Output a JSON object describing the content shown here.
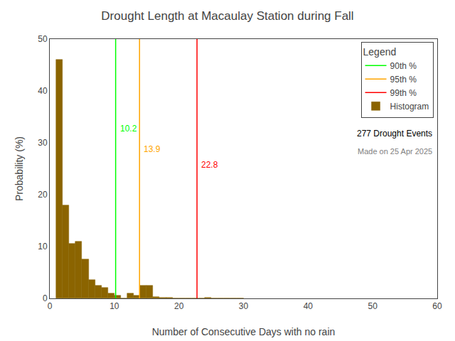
{
  "chart_data": {
    "type": "histogram",
    "title": "Drought Length at Macaulay Station during Fall",
    "xlabel": "Number of Consecutive Days with no rain",
    "ylabel": "Probability (%)",
    "name": "Histogram",
    "color": "#8B6400",
    "bins": [
      1,
      2,
      3,
      4,
      5,
      6,
      7,
      8,
      9,
      10,
      11,
      12,
      13,
      14,
      15,
      16,
      17,
      18,
      19,
      20,
      21,
      22,
      23,
      24,
      25,
      26,
      27,
      28,
      29,
      30
    ],
    "values": [
      46.0,
      18.0,
      10.5,
      11.0,
      7.5,
      3.5,
      2.5,
      2.0,
      1.0,
      0.5,
      0.0,
      1.0,
      0.5,
      2.5,
      2.5,
      0.3,
      0.2,
      0.2,
      0.0,
      0.0,
      0.0,
      0.0,
      0.0,
      0.2,
      0.0,
      0.0,
      0.0,
      0.0,
      0.0
    ],
    "lines": [
      {
        "name": "90th %",
        "x": 10.2,
        "color": "#00FF00",
        "label": "10.2",
        "label_y": 34
      },
      {
        "name": "95th %",
        "x": 13.9,
        "color": "#FFA500",
        "label": "13.9",
        "label_y": 30
      },
      {
        "name": "99th %",
        "x": 22.8,
        "color": "#FF0000",
        "label": "22.8",
        "label_y": 27
      }
    ],
    "legend": "upper right",
    "legend_title": "Legend",
    "annotations": [
      {
        "text": "277 Drought Events",
        "color": "black"
      },
      {
        "text": "Made on 25 Apr 2025",
        "color": "gray"
      }
    ],
    "xlim": [
      0,
      60
    ],
    "ylim": [
      0,
      50
    ],
    "xticks": [
      0,
      10,
      20,
      30,
      40,
      50,
      60
    ],
    "yticks": [
      0,
      10,
      20,
      30,
      40,
      50
    ],
    "grid": false
  }
}
